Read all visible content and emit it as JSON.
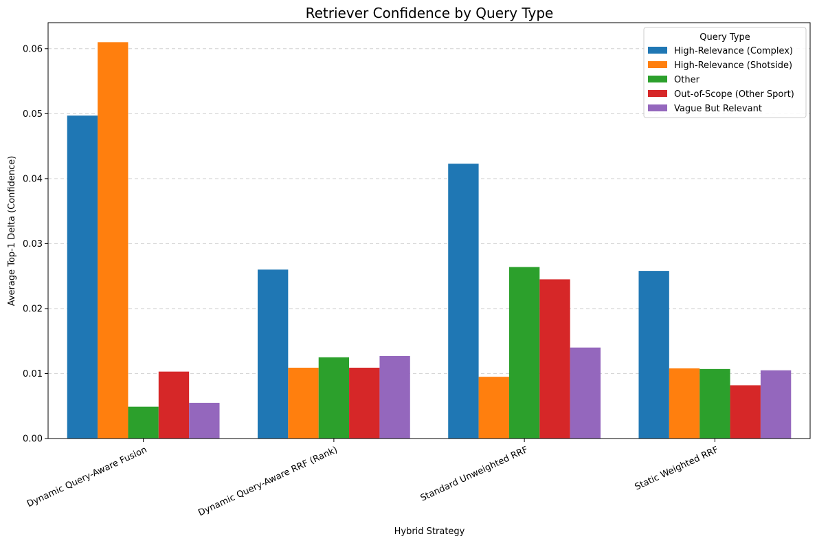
{
  "chart_data": {
    "type": "bar",
    "title": "Retriever Confidence by Query Type",
    "xlabel": "Hybrid Strategy",
    "ylabel": "Average Top-1 Delta (Confidence)",
    "ylim": [
      0,
      0.064
    ],
    "yticks": [
      0.0,
      0.01,
      0.02,
      0.03,
      0.04,
      0.05,
      0.06
    ],
    "ytick_labels": [
      "0.00",
      "0.01",
      "0.02",
      "0.03",
      "0.04",
      "0.05",
      "0.06"
    ],
    "grid": "y, dashed",
    "legend_title": "Query Type",
    "legend_position": "top-right",
    "categories": [
      "Dynamic Query-Aware Fusion",
      "Dynamic Query-Aware RRF (Rank)",
      "Standard Unweighted RRF",
      "Static Weighted RRF"
    ],
    "series": [
      {
        "name": "High-Relevance (Complex)",
        "color": "#1f77b4",
        "values": [
          0.0497,
          0.026,
          0.0423,
          0.0258
        ]
      },
      {
        "name": "High-Relevance (Shotside)",
        "color": "#ff7f0e",
        "values": [
          0.061,
          0.0109,
          0.0095,
          0.0108
        ]
      },
      {
        "name": "Other",
        "color": "#2ca02c",
        "values": [
          0.0049,
          0.0125,
          0.0264,
          0.0107
        ]
      },
      {
        "name": "Out-of-Scope (Other Sport)",
        "color": "#d62728",
        "values": [
          0.0103,
          0.0109,
          0.0245,
          0.0082
        ]
      },
      {
        "name": "Vague But Relevant",
        "color": "#9467bd",
        "values": [
          0.0055,
          0.0127,
          0.014,
          0.0105
        ]
      }
    ]
  }
}
